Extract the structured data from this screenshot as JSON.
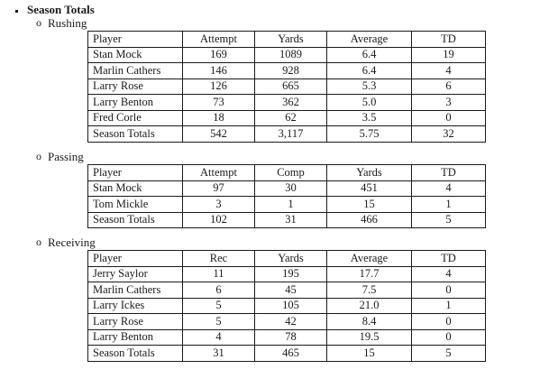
{
  "page": {
    "title": "Season Totals",
    "title_bullet": "square-bullet"
  },
  "colors": {
    "text": "#1a1a1a",
    "border": "#1a1a1a",
    "background": "#ffffff"
  },
  "sections": [
    {
      "marker": "o",
      "label": "Rushing",
      "table": {
        "headers": [
          "Player",
          "Attempt",
          "Yards",
          "Average",
          "TD"
        ],
        "rows": [
          [
            "Stan Mock",
            "169",
            "1089",
            "6.4",
            "19"
          ],
          [
            "Marlin Cathers",
            "146",
            "928",
            "6.4",
            "4"
          ],
          [
            "Larry Rose",
            "126",
            "665",
            "5.3",
            "6"
          ],
          [
            "Larry Benton",
            "73",
            "362",
            "5.0",
            "3"
          ],
          [
            "Fred Corle",
            "18",
            "62",
            "3.5",
            "0"
          ],
          [
            "Season Totals",
            "542",
            "3,117",
            "5.75",
            "32"
          ]
        ]
      }
    },
    {
      "marker": "o",
      "label": "Passing",
      "table": {
        "headers": [
          "Player",
          "Attempt",
          "Comp",
          "Yards",
          "TD"
        ],
        "rows": [
          [
            "Stan Mock",
            "97",
            "30",
            "451",
            "4"
          ],
          [
            "Tom Mickle",
            "3",
            "1",
            "15",
            "1"
          ],
          [
            "Season Totals",
            "102",
            "31",
            "466",
            "5"
          ]
        ]
      }
    },
    {
      "marker": "o",
      "label": "Receiving",
      "table": {
        "headers": [
          "Player",
          "Rec",
          "Yards",
          "Average",
          "TD"
        ],
        "rows": [
          [
            "Jerry Saylor",
            "11",
            "195",
            "17.7",
            "4"
          ],
          [
            "Marlin Cathers",
            "6",
            "45",
            "7.5",
            "0"
          ],
          [
            "Larry Ickes",
            "5",
            "105",
            "21.0",
            "1"
          ],
          [
            "Larry Rose",
            "5",
            "42",
            "8.4",
            "0"
          ],
          [
            "Larry Benton",
            "4",
            "78",
            "19.5",
            "0"
          ],
          [
            "Season Totals",
            "31",
            "465",
            "15",
            "5"
          ]
        ]
      }
    }
  ]
}
